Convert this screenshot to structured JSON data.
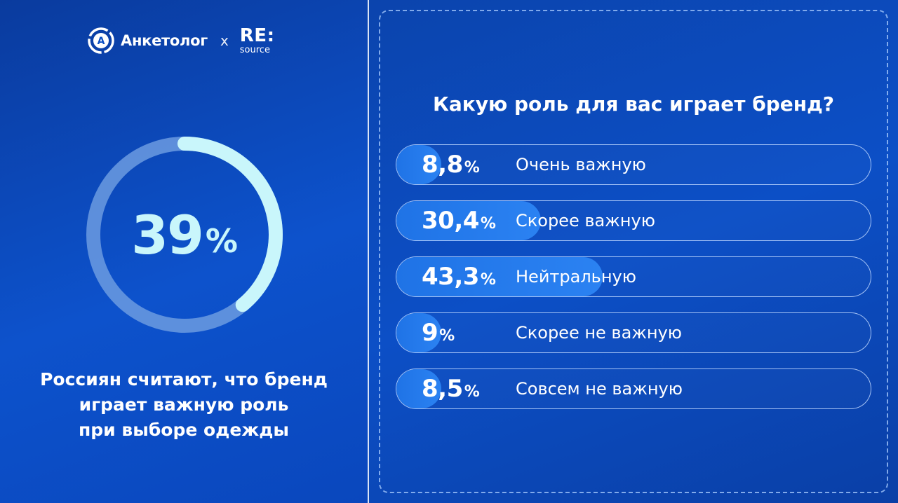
{
  "header": {
    "brand": "Анкетолог",
    "x_sign": "x",
    "partner_top": "RE:",
    "partner_bottom": "source"
  },
  "summary": {
    "value": "39",
    "unit": "%",
    "fraction": 0.39,
    "caption_lines": [
      "Россиян считают, что бренд",
      "играет важную роль",
      "при выборе одежды"
    ]
  },
  "colors": {
    "background": "#0b4fc4",
    "donut_track": "#6c9be0",
    "donut_arc": "#c9f6fb",
    "bar_fill": "#2b82f2"
  },
  "chart_data": {
    "type": "bar",
    "title": "Какую роль для вас играет бренд?",
    "unit": "%",
    "categories": [
      "Очень важную",
      "Скорее важную",
      "Нейтральную",
      "Скорее не важную",
      "Совсем не важную"
    ],
    "values": [
      8.8,
      30.4,
      43.3,
      9,
      8.5
    ],
    "value_labels": [
      "8,8",
      "30,4",
      "43,3",
      "9",
      "8,5"
    ],
    "xlim": [
      0,
      100
    ]
  }
}
